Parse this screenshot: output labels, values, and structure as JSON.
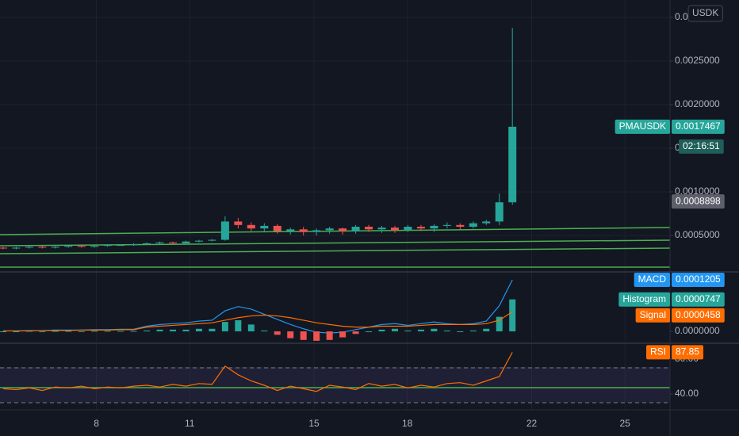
{
  "chart_data": {
    "type": "candlestick",
    "symbol": "PMAUSDK",
    "currency": "USDK",
    "countdown": "02:16:51",
    "x": [
      5.0,
      5.42,
      5.84,
      6.26,
      6.68,
      7.1,
      7.52,
      7.94,
      8.36,
      8.78,
      9.2,
      9.62,
      10.04,
      10.46,
      10.88,
      11.3,
      11.72,
      12.14,
      12.56,
      12.98,
      13.4,
      13.82,
      14.24,
      14.66,
      15.08,
      15.5,
      15.92,
      16.34,
      16.76,
      17.18,
      17.6,
      18.02,
      18.44,
      18.86,
      19.28,
      19.7,
      20.12,
      20.54,
      20.96,
      21.38
    ],
    "open": [
      0.00036,
      0.00035,
      0.00036,
      0.00037,
      0.00036,
      0.00037,
      0.00038,
      0.00037,
      0.00038,
      0.00039,
      0.00039,
      0.0004,
      0.00041,
      0.00042,
      0.00041,
      0.00043,
      0.00044,
      0.00045,
      0.00066,
      0.00062,
      0.00058,
      0.00061,
      0.00055,
      0.00057,
      0.00054,
      0.00056,
      0.00058,
      0.00055,
      0.0006,
      0.00057,
      0.00059,
      0.00056,
      0.0006,
      0.00058,
      0.00061,
      0.00062,
      0.0006,
      0.00064,
      0.00066,
      0.00088
    ],
    "high": [
      0.00037,
      0.00037,
      0.00038,
      0.00038,
      0.00038,
      0.00039,
      0.00039,
      0.00039,
      0.0004,
      0.0004,
      0.00041,
      0.00042,
      0.00043,
      0.00043,
      0.00044,
      0.00045,
      0.00046,
      0.00072,
      0.0007,
      0.00065,
      0.00064,
      0.00063,
      0.00059,
      0.0006,
      0.00058,
      0.0006,
      0.00059,
      0.00062,
      0.00062,
      0.00061,
      0.00061,
      0.00062,
      0.00062,
      0.00063,
      0.00065,
      0.00064,
      0.00066,
      0.00068,
      0.00098,
      0.00288
    ],
    "low": [
      0.00034,
      0.00034,
      0.00035,
      0.00035,
      0.00035,
      0.00036,
      0.00036,
      0.00036,
      0.00037,
      0.00038,
      0.00038,
      0.00039,
      0.0004,
      0.0004,
      0.0004,
      0.00042,
      0.00043,
      0.00044,
      0.00058,
      0.00055,
      0.00054,
      0.00052,
      0.00051,
      0.0005,
      0.0005,
      0.00052,
      0.00051,
      0.00052,
      0.00054,
      0.00053,
      0.00053,
      0.00054,
      0.00055,
      0.00054,
      0.00058,
      0.00057,
      0.00058,
      0.00062,
      0.00062,
      0.00085
    ],
    "close": [
      0.00035,
      0.00036,
      0.00037,
      0.00036,
      0.00037,
      0.00038,
      0.00037,
      0.00038,
      0.00039,
      0.00039,
      0.0004,
      0.00041,
      0.00042,
      0.00041,
      0.00043,
      0.00044,
      0.00045,
      0.00066,
      0.00062,
      0.00058,
      0.00061,
      0.00055,
      0.00057,
      0.00054,
      0.00056,
      0.00058,
      0.00055,
      0.0006,
      0.00057,
      0.00059,
      0.00056,
      0.0006,
      0.00058,
      0.00061,
      0.00062,
      0.0006,
      0.00064,
      0.00066,
      0.00088,
      0.0017467
    ],
    "up_color": "#26a69a",
    "down_color": "#ef5350",
    "xlim": [
      4.9,
      26.45
    ],
    "xticks": [
      8,
      11,
      15,
      18,
      22,
      25
    ],
    "ylim": [
      8.2e-05,
      0.0032
    ],
    "yticks": [
      {
        "value": 0.0005,
        "label": "0.0005000"
      },
      {
        "value": 0.001,
        "label": "0.0010000"
      },
      {
        "value": 0.0015,
        "label": "0.0015000"
      },
      {
        "value": 0.002,
        "label": "0.0020000"
      },
      {
        "value": 0.0025,
        "label": "0.0025000"
      },
      {
        "value": 0.003,
        "label": "0.0030000"
      }
    ],
    "marker": 0.0008898,
    "macd": {
      "series": [
        {
          "name": "MACD",
          "color": "#2196f3",
          "values": [
            1e-06,
            1e-06,
            2e-06,
            2e-06,
            3e-06,
            3e-06,
            3e-06,
            4e-06,
            4e-06,
            5e-06,
            5e-06,
            1.2e-05,
            1.6e-05,
            1.8e-05,
            2e-05,
            2.4e-05,
            2.6e-05,
            4.8e-05,
            5.8e-05,
            5.2e-05,
            4e-05,
            2.8e-05,
            1.6e-05,
            6e-06,
            -2e-06,
            -4e-06,
            -2e-06,
            4e-06,
            1e-05,
            1.6e-05,
            1.8e-05,
            1.4e-05,
            1.8e-05,
            2.2e-05,
            1.8e-05,
            1.6e-05,
            1.8e-05,
            2.4e-05,
            6e-05,
            0.0001205
          ]
        },
        {
          "name": "Histogram",
          "color": "#26a69a",
          "negative_color": "#ef5350",
          "values": [
            0,
            0,
            1e-06,
            0,
            1e-06,
            1e-06,
            0,
            1e-06,
            1e-06,
            1e-06,
            1e-06,
            2e-06,
            4e-06,
            4e-06,
            4e-06,
            6e-06,
            6e-06,
            2.2e-05,
            2.6e-05,
            1.6e-05,
            2e-06,
            -8e-06,
            -1.6e-05,
            -2e-05,
            -2.2e-05,
            -2e-05,
            -1.4e-05,
            -6e-06,
            0,
            4e-06,
            6e-06,
            2e-06,
            4e-06,
            6e-06,
            2e-06,
            0,
            2e-06,
            6e-06,
            3.4e-05,
            7.47e-05
          ]
        },
        {
          "name": "Signal",
          "color": "#ff6d00",
          "values": [
            1e-06,
            1e-06,
            1e-06,
            2e-06,
            2e-06,
            2e-06,
            3e-06,
            3e-06,
            3e-06,
            4e-06,
            4e-06,
            1e-05,
            1.2e-05,
            1.4e-05,
            1.6e-05,
            1.8e-05,
            2e-05,
            2.6e-05,
            3.2e-05,
            3.6e-05,
            3.8e-05,
            3.6e-05,
            3.2e-05,
            2.6e-05,
            2e-05,
            1.6e-05,
            1.2e-05,
            1e-05,
            1e-05,
            1.2e-05,
            1.2e-05,
            1.2e-05,
            1.4e-05,
            1.6e-05,
            1.6e-05,
            1.6e-05,
            1.6e-05,
            1.8e-05,
            2.6e-05,
            4.58e-05
          ]
        }
      ],
      "ylim": [
        -2.78e-05,
        0.000139
      ],
      "yticks": [
        {
          "value": 0,
          "label": "0.0000000"
        }
      ]
    },
    "rsi": {
      "name": "RSI",
      "color": "#ff6d00",
      "values": [
        46,
        45,
        47,
        44,
        48,
        47,
        49,
        46,
        48,
        47,
        49,
        50,
        48,
        51,
        49,
        52,
        51,
        72,
        62,
        55,
        50,
        44,
        49,
        46,
        43,
        50,
        48,
        45,
        52,
        49,
        51,
        47,
        50,
        48,
        52,
        53,
        50,
        55,
        60,
        87.85
      ],
      "ylim": [
        21.8,
        98.2
      ],
      "yticks": [
        {
          "value": 80,
          "label": "80.00"
        },
        {
          "value": 40,
          "label": "40.00"
        }
      ],
      "levels": [
        70,
        30
      ]
    }
  }
}
